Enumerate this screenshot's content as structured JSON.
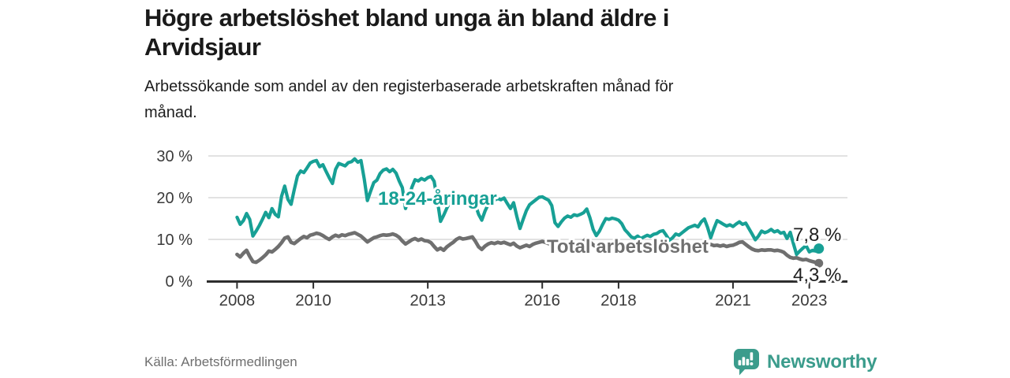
{
  "header": {
    "title_lines": [
      "Högre arbetslöshet bland unga än bland äldre i",
      "Arvidsjaur"
    ],
    "subtitle_lines": [
      "Arbetssökande som andel av den registerbaserade arbetskraften månad för",
      "månad."
    ]
  },
  "footer": {
    "source": "Källa: Arbetsförmedlingen",
    "brand": "Newsworthy"
  },
  "brand_colors": {
    "logo_teal": "#3b9c8c",
    "accent_teal": "#17a095",
    "line_gray": "#6f6f6f"
  },
  "chart_data": {
    "type": "line",
    "title": "Högre arbetslöshet bland unga än bland äldre i Arvidsjaur",
    "subtitle": "Arbetssökande som andel av den registerbaserade arbetskraften månad för månad.",
    "frequency": "monthly",
    "x_start": "2008-01",
    "x_end": "2023-04",
    "xlim": [
      2007,
      2024
    ],
    "ylim": [
      0,
      31
    ],
    "grid": true,
    "legend": "inline-labels",
    "x_axis": {
      "ticks": [
        2008,
        2010,
        2013,
        2016,
        2018,
        2021,
        2023
      ],
      "tick_labels": [
        "2008",
        "2010",
        "2013",
        "2016",
        "2018",
        "2021",
        "2023"
      ]
    },
    "y_axis": {
      "ticks": [
        0,
        10,
        20,
        30
      ],
      "tick_labels": [
        "0 %",
        "10 %",
        "20 %",
        "30 %"
      ]
    },
    "series": [
      {
        "name": "18-24-åringar",
        "color": "#17a095",
        "end_label": "7,8 %",
        "end_value": 7.8,
        "values": [
          15.3,
          13.6,
          14.5,
          16.2,
          14.8,
          10.8,
          12.0,
          13.3,
          14.8,
          16.5,
          15.2,
          17.4,
          16.0,
          15.4,
          20.3,
          22.8,
          19.6,
          18.4,
          21.9,
          25.2,
          26.4,
          26.0,
          27.1,
          28.3,
          28.7,
          28.9,
          27.4,
          27.9,
          26.3,
          24.8,
          23.4,
          26.8,
          28.2,
          27.9,
          27.6,
          28.4,
          28.6,
          29.3,
          28.5,
          28.9,
          24.5,
          19.3,
          21.5,
          23.6,
          24.2,
          25.8,
          26.6,
          26.9,
          26.2,
          26.8,
          25.9,
          24.0,
          22.4,
          17.4,
          19.8,
          22.5,
          24.3,
          24.0,
          24.6,
          24.2,
          24.8,
          25.1,
          23.9,
          19.5,
          14.3,
          15.8,
          17.5,
          19.0,
          19.6,
          18.8,
          19.4,
          19.2,
          19.8,
          20.3,
          19.5,
          18.2,
          16.0,
          14.6,
          16.8,
          18.4,
          19.6,
          19.4,
          19.8,
          19.5,
          19.9,
          18.6,
          17.4,
          18.8,
          15.5,
          12.6,
          14.8,
          16.9,
          18.3,
          18.9,
          19.5,
          20.1,
          20.2,
          19.8,
          19.4,
          18.1,
          14.0,
          13.1,
          14.2,
          15.1,
          15.6,
          15.3,
          15.9,
          15.7,
          16.0,
          16.4,
          17.3,
          15.2,
          12.4,
          10.9,
          12.0,
          13.6,
          15.0,
          14.8,
          15.1,
          14.9,
          14.6,
          13.8,
          12.3,
          11.5,
          10.6,
          10.3,
          10.8,
          10.2,
          10.6,
          11.0,
          10.7,
          11.2,
          11.4,
          11.9,
          12.1,
          11.0,
          9.8,
          10.4,
          11.3,
          11.0,
          11.6,
          12.2,
          12.8,
          13.1,
          13.4,
          13.0,
          14.2,
          14.9,
          12.9,
          10.4,
          12.6,
          14.5,
          14.1,
          13.6,
          13.2,
          13.5,
          13.1,
          13.7,
          14.2,
          13.6,
          13.9,
          12.6,
          11.3,
          9.9,
          10.8,
          12.0,
          11.6,
          11.9,
          12.4,
          11.8,
          12.1,
          11.5,
          11.7,
          10.2,
          11.7,
          9.0,
          6.4,
          7.2,
          7.9,
          8.5,
          7.0,
          7.4,
          7.2,
          7.8
        ]
      },
      {
        "name": "Total arbetslöshet",
        "color": "#6f6f6f",
        "end_label": "4,3 %",
        "end_value": 4.3,
        "values": [
          6.4,
          5.8,
          6.7,
          7.4,
          5.9,
          4.7,
          4.5,
          5.0,
          5.6,
          6.3,
          7.2,
          7.0,
          7.6,
          8.3,
          9.2,
          10.3,
          10.6,
          9.3,
          9.0,
          9.6,
          10.2,
          10.7,
          10.4,
          11.0,
          11.2,
          11.5,
          11.3,
          10.9,
          10.4,
          10.0,
          10.6,
          11.0,
          10.7,
          11.1,
          10.9,
          11.2,
          11.4,
          11.6,
          11.2,
          10.8,
          10.1,
          9.4,
          9.9,
          10.4,
          10.6,
          10.9,
          11.1,
          11.0,
          11.1,
          11.3,
          11.0,
          10.5,
          9.6,
          8.9,
          9.4,
          9.9,
          10.2,
          9.8,
          10.1,
          9.7,
          9.6,
          9.2,
          8.3,
          7.5,
          7.9,
          7.4,
          8.2,
          8.8,
          9.3,
          10.0,
          10.4,
          10.1,
          10.2,
          10.4,
          10.6,
          9.5,
          8.2,
          7.6,
          8.4,
          8.9,
          9.2,
          9.0,
          9.3,
          9.1,
          9.3,
          9.0,
          8.7,
          9.1,
          8.4,
          8.0,
          8.3,
          8.6,
          8.3,
          8.8,
          9.1,
          9.3,
          9.5,
          9.3,
          9.0,
          8.6,
          8.2,
          7.9,
          8.3,
          8.6,
          8.9,
          8.7,
          9.0,
          8.8,
          9.0,
          9.6,
          10.2,
          9.4,
          8.7,
          8.2,
          8.5,
          8.8,
          9.0,
          8.7,
          8.9,
          8.6,
          8.5,
          8.3,
          8.0,
          7.8,
          7.6,
          7.4,
          7.7,
          7.9,
          8.1,
          7.9,
          8.2,
          8.0,
          8.1,
          8.3,
          8.0,
          7.7,
          7.5,
          7.3,
          7.6,
          7.8,
          8.0,
          8.2,
          8.4,
          8.3,
          8.5,
          8.7,
          9.2,
          9.4,
          9.1,
          8.8,
          8.5,
          8.6,
          8.4,
          8.6,
          8.3,
          8.5,
          8.6,
          8.9,
          9.3,
          9.4,
          8.8,
          8.2,
          7.7,
          7.4,
          7.3,
          7.5,
          7.4,
          7.5,
          7.5,
          7.3,
          7.4,
          7.2,
          6.9,
          6.2,
          5.7,
          5.5,
          5.6,
          5.3,
          5.1,
          5.2,
          4.9,
          4.7,
          4.5,
          4.3
        ]
      }
    ]
  }
}
